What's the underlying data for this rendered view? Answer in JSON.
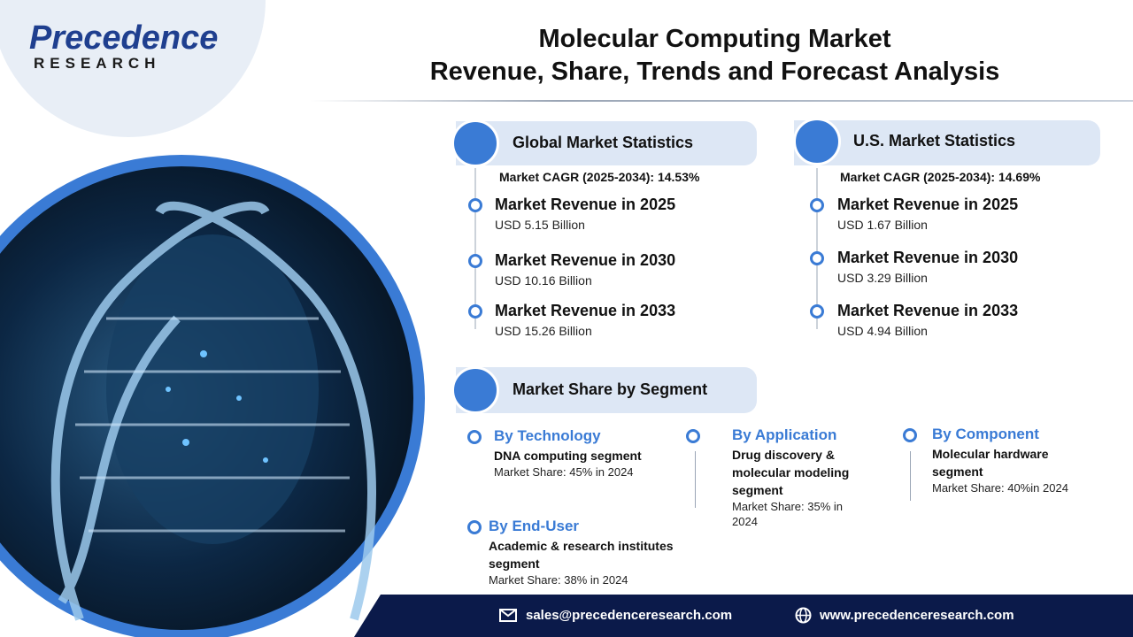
{
  "logo": {
    "name": "Precedence",
    "tagline": "RESEARCH"
  },
  "title": [
    "Molecular Computing Market",
    "Revenue, Share, Trends and Forecast Analysis"
  ],
  "global": {
    "heading": "Global Market Statistics",
    "cagr": "Market CAGR (2025-2034): 14.53%",
    "items": [
      {
        "label": "Market Revenue in 2025",
        "value": "USD 5.15  Billion"
      },
      {
        "label": "Market Revenue in 2030",
        "value": "USD 10.16 Billion"
      },
      {
        "label": "Market Revenue in 2033",
        "value": "USD 15.26 Billion"
      }
    ]
  },
  "us": {
    "heading": "U.S. Market Statistics",
    "cagr": "Market CAGR (2025-2034): 14.69%",
    "items": [
      {
        "label": "Market Revenue in 2025",
        "value": "USD 1.67 Billion"
      },
      {
        "label": "Market Revenue in 2030",
        "value": "USD 3.29 Billion"
      },
      {
        "label": "Market Revenue in 2033",
        "value": "USD 4.94 Billion"
      }
    ]
  },
  "segments": {
    "heading": "Market Share by Segment",
    "items": [
      {
        "title": "By Technology",
        "segment": "DNA computing segment",
        "share": "Market Share: 45% in 2024"
      },
      {
        "title": "By Application",
        "segment": "Drug discovery & molecular modeling segment",
        "share": "Market Share: 35% in 2024"
      },
      {
        "title": "By Component",
        "segment": "Molecular hardware segment",
        "share": "Market Share: 40%in 2024"
      },
      {
        "title": "By End-User",
        "segment": "Academic & research institutes segment",
        "share": "Market Share: 38% in 2024"
      }
    ]
  },
  "footer": {
    "email": "sales@precedenceresearch.com",
    "website": "www.precedenceresearch.com"
  }
}
